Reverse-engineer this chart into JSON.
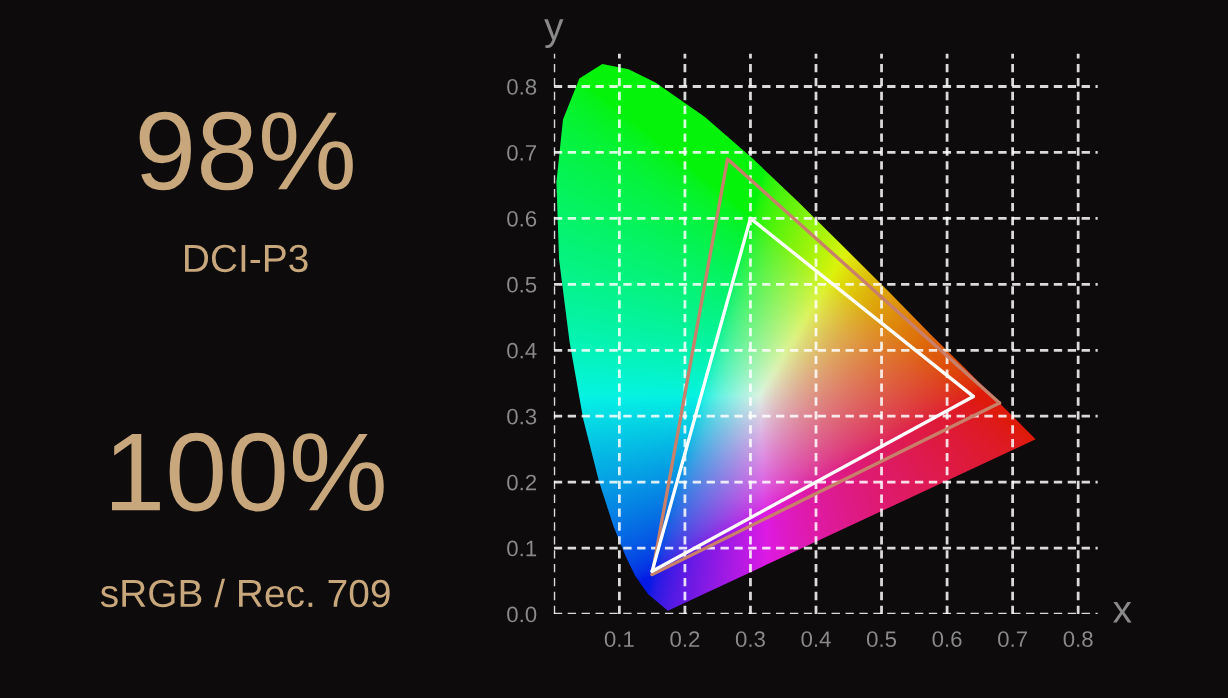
{
  "chart_data": {
    "type": "line",
    "xlabel": "x",
    "ylabel": "y",
    "annotations": [
      "98%",
      "DCI-P3",
      "100%",
      "sRGB / Rec. 709"
    ],
    "xlim": [
      0,
      0.83
    ],
    "ylim": [
      0,
      0.85
    ],
    "xticks": [
      {
        "value": 0,
        "label": null
      },
      0.1,
      0.2,
      0.3,
      0.4,
      0.5,
      0.6,
      0.7,
      0.8
    ],
    "yticks": [
      {
        "value": 0,
        "label": "0.0"
      },
      0.1,
      0.2,
      0.3,
      0.4,
      0.5,
      0.6,
      0.7,
      0.8
    ],
    "grid": true,
    "marker": "none",
    "series": [
      {
        "type": "area",
        "color": "#1fae4b",
        "x": [
          0.174,
          0.144,
          0.124,
          0.11,
          0.091,
          0.069,
          0.045,
          0.024,
          0.008,
          0.004,
          0.014,
          0.039,
          0.074,
          0.114,
          0.155,
          0.23,
          0.302,
          0.373,
          0.444,
          0.513,
          0.575,
          0.627,
          0.666,
          0.692,
          0.719,
          0.735,
          0.174
        ],
        "values": [
          0.005,
          0.03,
          0.058,
          0.087,
          0.133,
          0.201,
          0.295,
          0.413,
          0.538,
          0.655,
          0.75,
          0.812,
          0.834,
          0.826,
          0.806,
          0.754,
          0.692,
          0.625,
          0.555,
          0.487,
          0.424,
          0.373,
          0.334,
          0.308,
          0.281,
          0.265,
          0.005
        ]
      },
      {
        "type": "line",
        "color": "#c8806a",
        "x": [
          0.15,
          0.265,
          0.68
        ],
        "values": [
          0.06,
          0.69,
          0.32
        ]
      },
      {
        "type": "line",
        "color": "#c8806a",
        "x": [
          0.15,
          0.68
        ],
        "values": [
          0.06,
          0.32
        ]
      },
      {
        "type": "line",
        "color": "#ffffff",
        "x": [
          0.15,
          0.3,
          0.64
        ],
        "values": [
          0.065,
          0.6,
          0.33
        ]
      },
      {
        "type": "line",
        "color": "#ffffff",
        "x": [
          0.15,
          0.64
        ],
        "values": [
          0.065,
          0.33
        ]
      }
    ]
  }
}
